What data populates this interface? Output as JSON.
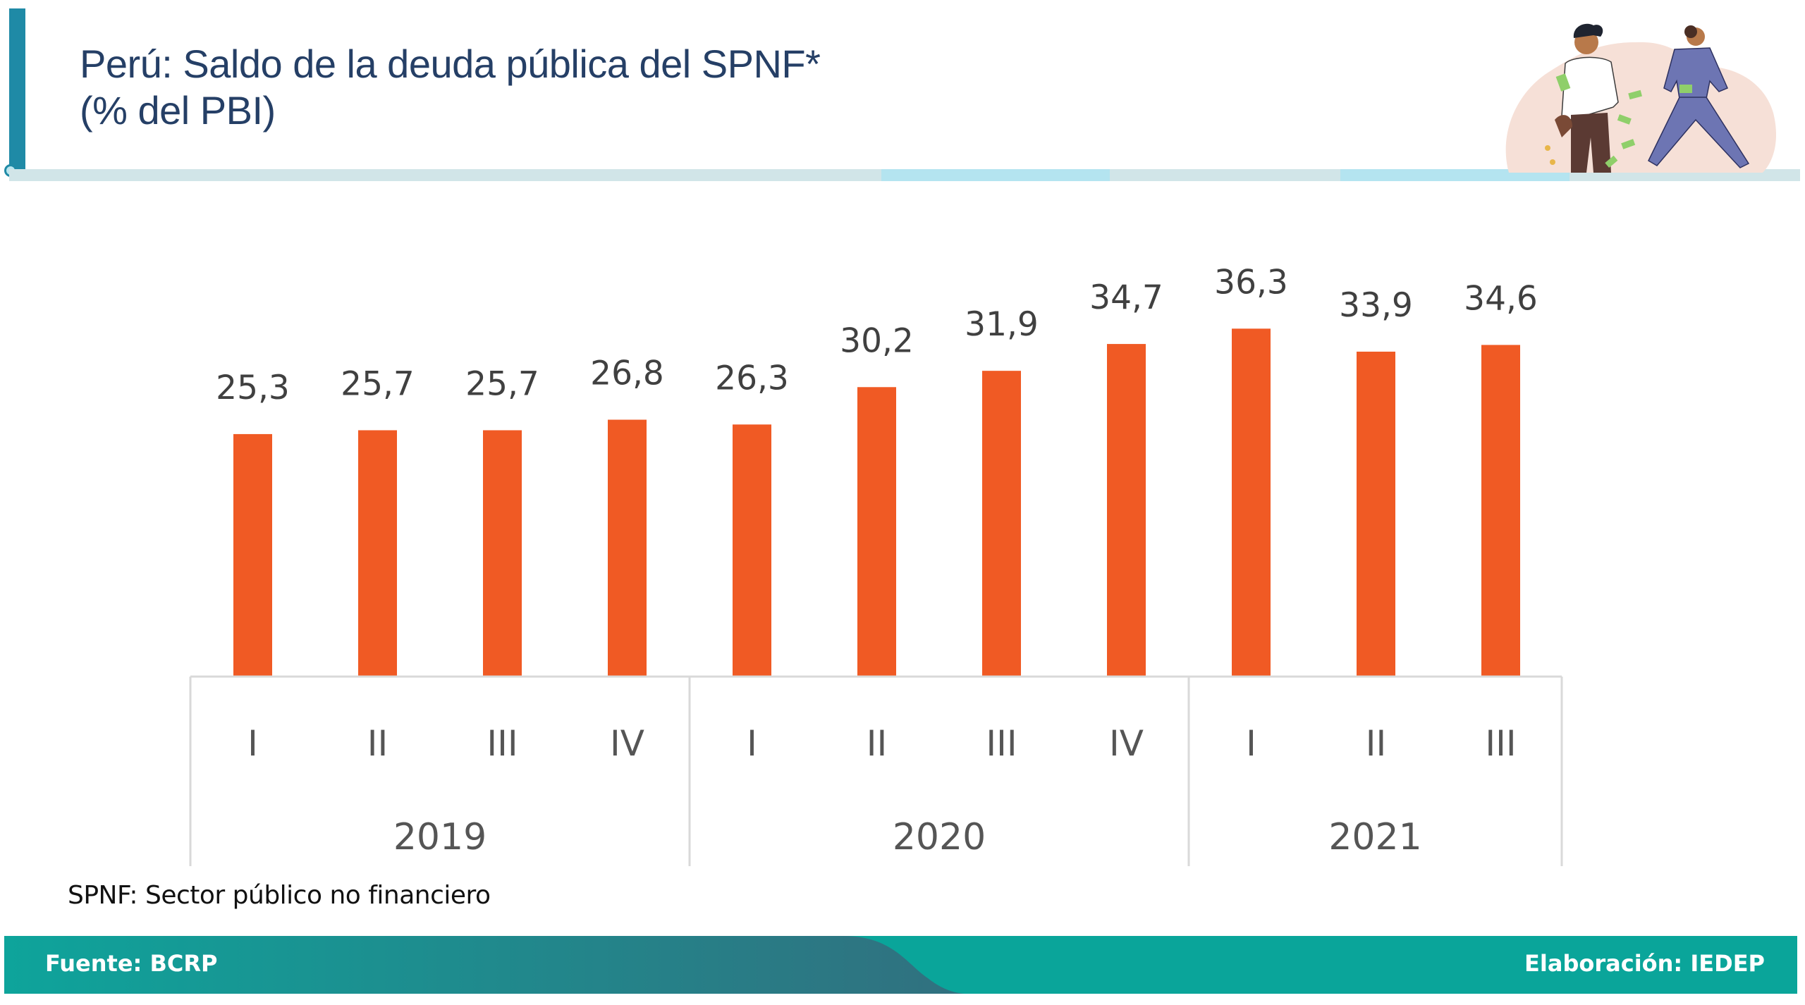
{
  "header": {
    "title_line1": "Perú: Saldo de la deuda pública del SPNF*",
    "title_line2": "(% del PBI)",
    "illustration": "people-money-illustration"
  },
  "colors": {
    "accent": "#1f8aa6",
    "title": "#253f66",
    "bar": "#f05a24",
    "value_label": "#404040",
    "axis": "#d9d9d9",
    "footer_teal": "#0aa59a",
    "footer_dark": "#2f6f7e",
    "footer_light": "#6fd8dc"
  },
  "chart_data": {
    "type": "bar",
    "title": "Perú: Saldo de la deuda pública del SPNF* (% del PBI)",
    "xlabel": "",
    "ylabel": "% del PBI",
    "categories": [
      "I",
      "II",
      "III",
      "IV",
      "I",
      "II",
      "III",
      "IV",
      "I",
      "II",
      "III"
    ],
    "groups": [
      {
        "label": "2019",
        "count": 4
      },
      {
        "label": "2020",
        "count": 4
      },
      {
        "label": "2021",
        "count": 3
      }
    ],
    "values": [
      25.3,
      25.7,
      25.7,
      26.8,
      26.3,
      30.2,
      31.9,
      34.7,
      36.3,
      33.9,
      34.6
    ],
    "value_labels": [
      "25,3",
      "25,7",
      "25,7",
      "26,8",
      "26,3",
      "30,2",
      "31,9",
      "34,7",
      "36,3",
      "33,9",
      "34,6"
    ],
    "ylim": [
      0,
      40
    ],
    "grid": false,
    "legend": "none"
  },
  "footnote": "SPNF: Sector público no financiero",
  "footer": {
    "source": "Fuente:  BCRP",
    "credit": "Elaboración: IEDEP"
  }
}
